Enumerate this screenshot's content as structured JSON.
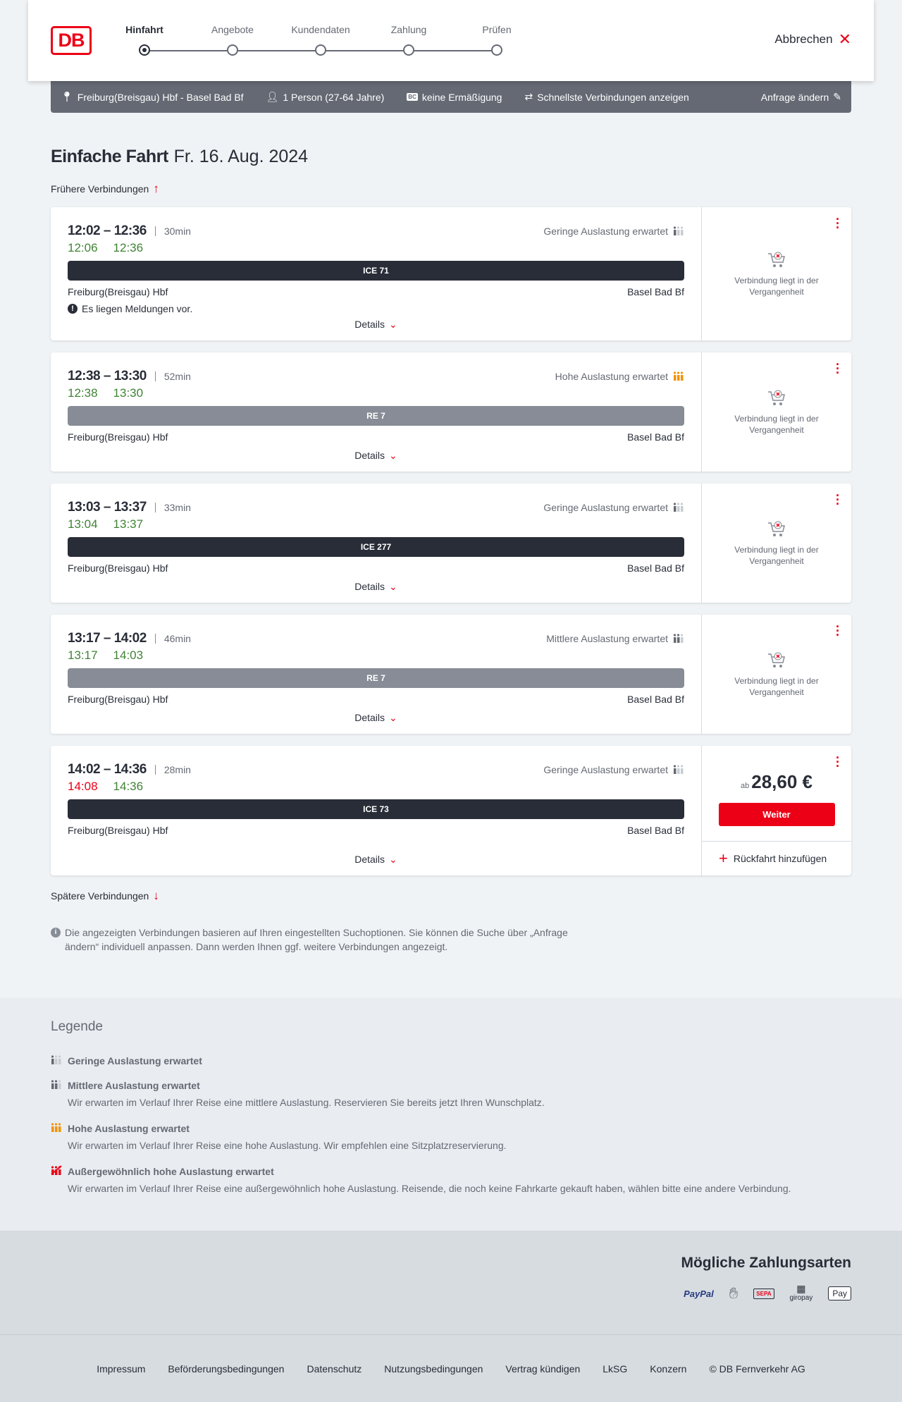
{
  "header": {
    "logo": "DB",
    "steps": [
      "Hinfahrt",
      "Angebote",
      "Kundendaten",
      "Zahlung",
      "Prüfen"
    ],
    "active_step": 0,
    "cancel": "Abbrechen"
  },
  "summary": {
    "route": "Freiburg(Breisgau) Hbf - Basel Bad Bf",
    "passengers": "1 Person (27-64 Jahre)",
    "discount_badge": "BC",
    "discount": "keine Ermäßigung",
    "option": "Schnellste Verbindungen anzeigen",
    "edit": "Anfrage ändern"
  },
  "title": {
    "type": "Einfache Fahrt",
    "date": "Fr. 16. Aug. 2024"
  },
  "earlier": "Frühere Verbindungen",
  "later": "Spätere Verbindungen",
  "colors": {
    "accent": "#ec0016",
    "ontime": "#408335",
    "ice": "#282d37",
    "regio": "#878c96",
    "load_high": "#f39200"
  },
  "connections": [
    {
      "times": "12:02 – 12:36",
      "duration": "30min",
      "load": "Geringe Auslastung erwartet",
      "load_level": 1,
      "rt_dep": "12:06",
      "rt_arr": "12:36",
      "dep_late": false,
      "train": "ICE 71",
      "train_kind": "ice",
      "from": "Freiburg(Breisgau) Hbf",
      "to": "Basel Bad Bf",
      "message": "Es liegen Meldungen vor.",
      "details": "Details",
      "status": "Verbindung liegt in der Vergangenheit"
    },
    {
      "times": "12:38 – 13:30",
      "duration": "52min",
      "load": "Hohe Auslastung erwartet",
      "load_level": 3,
      "rt_dep": "12:38",
      "rt_arr": "13:30",
      "dep_late": false,
      "train": "RE 7",
      "train_kind": "regio",
      "from": "Freiburg(Breisgau) Hbf",
      "to": "Basel Bad Bf",
      "details": "Details",
      "status": "Verbindung liegt in der Vergangenheit"
    },
    {
      "times": "13:03 – 13:37",
      "duration": "33min",
      "load": "Geringe Auslastung erwartet",
      "load_level": 1,
      "rt_dep": "13:04",
      "rt_arr": "13:37",
      "dep_late": false,
      "train": "ICE 277",
      "train_kind": "ice",
      "from": "Freiburg(Breisgau) Hbf",
      "to": "Basel Bad Bf",
      "details": "Details",
      "status": "Verbindung liegt in der Vergangenheit"
    },
    {
      "times": "13:17 – 14:02",
      "duration": "46min",
      "load": "Mittlere Auslastung erwartet",
      "load_level": 2,
      "rt_dep": "13:17",
      "rt_arr": "14:03",
      "dep_late": false,
      "train": "RE 7",
      "train_kind": "regio",
      "from": "Freiburg(Breisgau) Hbf",
      "to": "Basel Bad Bf",
      "details": "Details",
      "status": "Verbindung liegt in der Vergangenheit"
    },
    {
      "times": "14:02 – 14:36",
      "duration": "28min",
      "load": "Geringe Auslastung erwartet",
      "load_level": 1,
      "rt_dep": "14:08",
      "rt_arr": "14:36",
      "dep_late": true,
      "train": "ICE 73",
      "train_kind": "ice",
      "from": "Freiburg(Breisgau) Hbf",
      "to": "Basel Bad Bf",
      "details": "Details",
      "price_prefix": "ab",
      "price": "28,60 €",
      "button": "Weiter",
      "return": "Rückfahrt hinzufügen"
    }
  ],
  "info": "Die angezeigten Verbindungen basieren auf Ihren eingestellten Suchoptionen. Sie können die Suche über „Anfrage ändern“ individuell anpassen. Dann werden Ihnen ggf. weitere Verbindungen angezeigt.",
  "legend": {
    "title": "Legende",
    "items": [
      {
        "title": "Geringe Auslastung erwartet",
        "level": 1,
        "text": ""
      },
      {
        "title": "Mittlere Auslastung erwartet",
        "level": 2,
        "text": "Wir erwarten im Verlauf Ihrer Reise eine mittlere Auslastung. Reservieren Sie bereits jetzt Ihren Wunschplatz."
      },
      {
        "title": "Hohe Auslastung erwartet",
        "level": 3,
        "text": "Wir erwarten im Verlauf Ihrer Reise eine hohe Auslastung. Wir empfehlen eine Sitzplatzreservierung."
      },
      {
        "title": "Außergewöhnlich hohe Auslastung erwartet",
        "level": 4,
        "text": "Wir erwarten im Verlauf Ihrer Reise eine außergewöhnlich hohe Auslastung. Reisende, die noch keine Fahrkarte gekauft haben, wählen bitte eine andere Verbindung."
      }
    ]
  },
  "payment": {
    "title": "Mögliche Zahlungsarten",
    "methods": [
      "PayPal",
      "Kreditkarte",
      "SEPA",
      "giropay",
      "Pay"
    ]
  },
  "footer": [
    "Impressum",
    "Beförderungsbedingungen",
    "Datenschutz",
    "Nutzungsbedingungen",
    "Vertrag kündigen",
    "LkSG",
    "Konzern",
    "© DB Fernverkehr AG"
  ]
}
